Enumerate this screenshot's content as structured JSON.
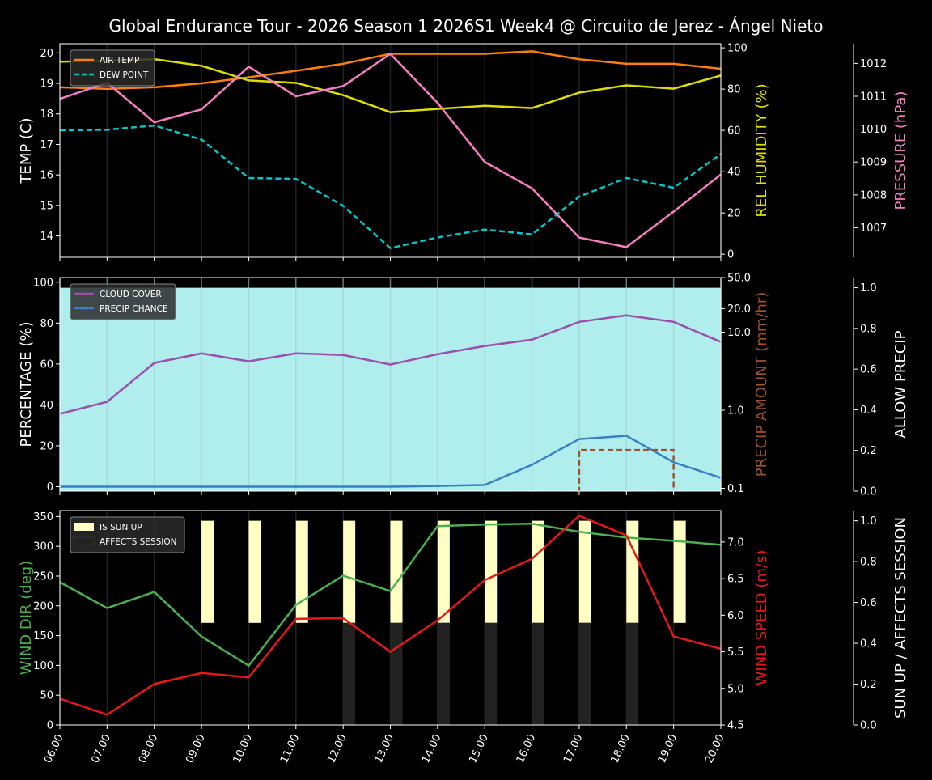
{
  "title": "Global Endurance Tour - 2026 Season 1 2026S1 Week4 @ Circuito de Jerez - Ángel Nieto",
  "chart_data": [
    {
      "type": "line",
      "x": [
        "06:00",
        "07:00",
        "08:00",
        "09:00",
        "10:00",
        "11:00",
        "12:00",
        "13:00",
        "14:00",
        "15:00",
        "16:00",
        "17:00",
        "18:00",
        "19:00",
        "20:00"
      ],
      "ylabel": "TEMP (C)",
      "ylim": [
        13.3,
        20.3
      ],
      "yticks": [
        14,
        15,
        16,
        17,
        18,
        19,
        20
      ],
      "y2label": "REL HUMIDITY (%)",
      "y2lim": [
        -1.5,
        102
      ],
      "y2ticks": [
        0,
        20,
        40,
        60,
        80,
        100
      ],
      "y3label": "PRESSURE (hPa)",
      "y3lim": [
        1006.1,
        1012.6
      ],
      "y3ticks": [
        1007,
        1008,
        1009,
        1010,
        1011,
        1012
      ],
      "legend": "top-left",
      "series": [
        {
          "name": "AIR TEMP",
          "axis": "y",
          "color": "#ff7f0e",
          "dash": false,
          "legend": true,
          "values": [
            18.87,
            18.82,
            18.87,
            19.0,
            19.2,
            19.41,
            19.64,
            19.97,
            19.97,
            19.97,
            20.05,
            19.79,
            19.64,
            19.64,
            19.48
          ]
        },
        {
          "name": "DEW POINT",
          "axis": "y",
          "color": "#00c8c8",
          "dash": true,
          "legend": true,
          "values": [
            17.46,
            17.48,
            17.62,
            17.16,
            15.9,
            15.87,
            14.99,
            13.6,
            13.95,
            14.21,
            14.05,
            15.29,
            15.9,
            15.58,
            16.68
          ]
        },
        {
          "axis": "y2",
          "color": "#dddd00",
          "dash": false,
          "legend": false,
          "values": [
            93.3,
            93.7,
            94.5,
            91.3,
            84.2,
            83.0,
            77.1,
            68.8,
            70.4,
            71.9,
            70.8,
            78.3,
            81.8,
            80.2,
            86.6
          ]
        },
        {
          "axis": "y3",
          "color": "#f47fbf",
          "dash": false,
          "legend": false,
          "values": [
            1010.92,
            1011.41,
            1010.21,
            1010.6,
            1011.9,
            1011.0,
            1011.31,
            1012.29,
            1010.8,
            1009.0,
            1008.2,
            1006.7,
            1006.41,
            1007.49,
            1008.62
          ]
        }
      ],
      "axis_colors": {
        "y": "#ffffff",
        "y2": "#dddd00",
        "y3": "#f47fbf"
      }
    },
    {
      "type": "line",
      "x": [
        "06:00",
        "07:00",
        "08:00",
        "09:00",
        "10:00",
        "11:00",
        "12:00",
        "13:00",
        "14:00",
        "15:00",
        "16:00",
        "17:00",
        "18:00",
        "19:00",
        "20:00"
      ],
      "ylabel": "PERCENTAGE (%)",
      "ylim": [
        -2.2,
        102.3
      ],
      "yticks": [
        0,
        20,
        40,
        60,
        80,
        100
      ],
      "y2label": "PRECIP AMOUNT (mm/hr)",
      "y2scale": "log",
      "y2lim": [
        0.092,
        50
      ],
      "y2ticks": [
        "0.1",
        "1.0",
        "10.0",
        "20.0",
        "50.0"
      ],
      "y3label": "ALLOW PRECIP",
      "y3lim": [
        0,
        1.05
      ],
      "y3ticks": [
        "0.0",
        "0.2",
        "0.4",
        "0.6",
        "0.8",
        "1.0"
      ],
      "legend": "top-left",
      "allow_precip": {
        "color": "#b0eeee",
        "values": [
          1,
          1,
          1,
          1,
          1,
          1,
          1,
          1,
          1,
          1,
          1,
          1,
          1,
          1,
          1
        ]
      },
      "series": [
        {
          "name": "CLOUD COVER",
          "axis": "y",
          "color": "#9b4fa8",
          "legend": true,
          "values": [
            35.6,
            41.5,
            60.5,
            65.2,
            61.3,
            65.2,
            64.4,
            59.7,
            64.8,
            68.8,
            71.9,
            80.6,
            83.8,
            80.6,
            70.8
          ]
        },
        {
          "name": "PRECIP CHANCE",
          "axis": "y",
          "color": "#3a7fc2",
          "legend": true,
          "values": [
            0,
            0,
            0,
            0,
            0,
            0,
            0,
            0,
            0.3,
            0.8,
            10.7,
            23.3,
            24.9,
            11.9,
            4.3
          ]
        },
        {
          "axis": "y2",
          "color": "#a0522d",
          "dash": true,
          "legend": false,
          "step": true,
          "values": [
            0,
            0,
            0,
            0,
            0,
            0,
            0,
            0,
            0,
            0,
            0,
            0.31,
            0.31,
            0,
            0
          ]
        }
      ],
      "axis_colors": {
        "y": "#ffffff",
        "y2": "#a0522d",
        "y3": "#ffffff"
      }
    },
    {
      "type": "line",
      "x": [
        "06:00",
        "07:00",
        "08:00",
        "09:00",
        "10:00",
        "11:00",
        "12:00",
        "13:00",
        "14:00",
        "15:00",
        "16:00",
        "17:00",
        "18:00",
        "19:00",
        "20:00"
      ],
      "ylabel": "WIND DIR (deg)",
      "ylim": [
        0,
        360
      ],
      "yticks": [
        0,
        50,
        100,
        150,
        200,
        250,
        300,
        350
      ],
      "y2label": "WIND SPEED (m/s)",
      "y2lim": [
        4.5,
        7.43
      ],
      "y2ticks": [
        "4.5",
        "5.0",
        "5.5",
        "6.0",
        "6.5",
        "7.0"
      ],
      "y3label": "SUN UP / AFFECTS SESSION",
      "y3lim": [
        0,
        1.05
      ],
      "y3ticks": [
        "0.0",
        "0.2",
        "0.4",
        "0.6",
        "0.8",
        "1.0"
      ],
      "legend": "top-left",
      "bars": [
        {
          "name": "IS SUN UP",
          "color": "#ffffc4",
          "base": 0.5,
          "values": [
            0,
            0,
            0,
            0.5,
            0.5,
            0.5,
            0.5,
            0.5,
            0.5,
            0.5,
            0.5,
            0.5,
            0.5,
            0.5,
            0
          ]
        },
        {
          "name": "AFFECTS SESSION",
          "color": "#222222",
          "base": 0,
          "values": [
            0,
            0,
            0,
            0,
            0,
            0,
            0.5,
            0.5,
            0.5,
            0.5,
            0.5,
            0.5,
            0.5,
            0,
            0
          ]
        }
      ],
      "series": [
        {
          "axis": "y",
          "color": "#4caf50",
          "legend": false,
          "values": [
            239.8,
            196.2,
            223.4,
            148.5,
            99.5,
            201.6,
            250.7,
            224.8,
            333.8,
            336.5,
            337.9,
            324.3,
            314.7,
            309.3,
            302.5
          ]
        },
        {
          "axis": "y2",
          "color": "#e31a1c",
          "legend": false,
          "values": [
            4.86,
            4.64,
            5.06,
            5.21,
            5.15,
            5.95,
            5.96,
            5.5,
            5.93,
            6.48,
            6.77,
            7.36,
            7.09,
            5.71,
            5.54
          ]
        }
      ],
      "axis_colors": {
        "y": "#4caf50",
        "y2": "#e31a1c",
        "y3": "#ffffff"
      }
    }
  ]
}
